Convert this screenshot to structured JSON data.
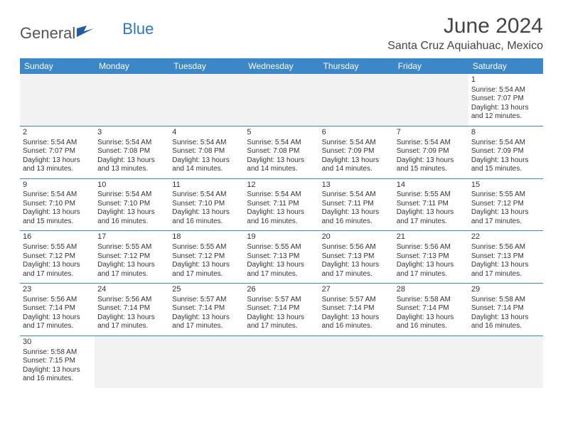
{
  "logo": {
    "text1": "General",
    "text2": "Blue"
  },
  "title": "June 2024",
  "location": "Santa Cruz Aquiahuac, Mexico",
  "colors": {
    "header_bg": "#3b87c8",
    "header_text": "#ffffff",
    "cell_border": "#3b87c8",
    "blank_bg": "#f2f2f2",
    "text": "#333333",
    "logo_blue": "#2a78bd"
  },
  "daysOfWeek": [
    "Sunday",
    "Monday",
    "Tuesday",
    "Wednesday",
    "Thursday",
    "Friday",
    "Saturday"
  ],
  "weeks": [
    [
      null,
      null,
      null,
      null,
      null,
      null,
      {
        "n": "1",
        "sr": "Sunrise: 5:54 AM",
        "ss": "Sunset: 7:07 PM",
        "dl1": "Daylight: 13 hours",
        "dl2": "and 12 minutes."
      }
    ],
    [
      {
        "n": "2",
        "sr": "Sunrise: 5:54 AM",
        "ss": "Sunset: 7:07 PM",
        "dl1": "Daylight: 13 hours",
        "dl2": "and 13 minutes."
      },
      {
        "n": "3",
        "sr": "Sunrise: 5:54 AM",
        "ss": "Sunset: 7:08 PM",
        "dl1": "Daylight: 13 hours",
        "dl2": "and 13 minutes."
      },
      {
        "n": "4",
        "sr": "Sunrise: 5:54 AM",
        "ss": "Sunset: 7:08 PM",
        "dl1": "Daylight: 13 hours",
        "dl2": "and 14 minutes."
      },
      {
        "n": "5",
        "sr": "Sunrise: 5:54 AM",
        "ss": "Sunset: 7:08 PM",
        "dl1": "Daylight: 13 hours",
        "dl2": "and 14 minutes."
      },
      {
        "n": "6",
        "sr": "Sunrise: 5:54 AM",
        "ss": "Sunset: 7:09 PM",
        "dl1": "Daylight: 13 hours",
        "dl2": "and 14 minutes."
      },
      {
        "n": "7",
        "sr": "Sunrise: 5:54 AM",
        "ss": "Sunset: 7:09 PM",
        "dl1": "Daylight: 13 hours",
        "dl2": "and 15 minutes."
      },
      {
        "n": "8",
        "sr": "Sunrise: 5:54 AM",
        "ss": "Sunset: 7:09 PM",
        "dl1": "Daylight: 13 hours",
        "dl2": "and 15 minutes."
      }
    ],
    [
      {
        "n": "9",
        "sr": "Sunrise: 5:54 AM",
        "ss": "Sunset: 7:10 PM",
        "dl1": "Daylight: 13 hours",
        "dl2": "and 15 minutes."
      },
      {
        "n": "10",
        "sr": "Sunrise: 5:54 AM",
        "ss": "Sunset: 7:10 PM",
        "dl1": "Daylight: 13 hours",
        "dl2": "and 16 minutes."
      },
      {
        "n": "11",
        "sr": "Sunrise: 5:54 AM",
        "ss": "Sunset: 7:10 PM",
        "dl1": "Daylight: 13 hours",
        "dl2": "and 16 minutes."
      },
      {
        "n": "12",
        "sr": "Sunrise: 5:54 AM",
        "ss": "Sunset: 7:11 PM",
        "dl1": "Daylight: 13 hours",
        "dl2": "and 16 minutes."
      },
      {
        "n": "13",
        "sr": "Sunrise: 5:54 AM",
        "ss": "Sunset: 7:11 PM",
        "dl1": "Daylight: 13 hours",
        "dl2": "and 16 minutes."
      },
      {
        "n": "14",
        "sr": "Sunrise: 5:55 AM",
        "ss": "Sunset: 7:11 PM",
        "dl1": "Daylight: 13 hours",
        "dl2": "and 17 minutes."
      },
      {
        "n": "15",
        "sr": "Sunrise: 5:55 AM",
        "ss": "Sunset: 7:12 PM",
        "dl1": "Daylight: 13 hours",
        "dl2": "and 17 minutes."
      }
    ],
    [
      {
        "n": "16",
        "sr": "Sunrise: 5:55 AM",
        "ss": "Sunset: 7:12 PM",
        "dl1": "Daylight: 13 hours",
        "dl2": "and 17 minutes."
      },
      {
        "n": "17",
        "sr": "Sunrise: 5:55 AM",
        "ss": "Sunset: 7:12 PM",
        "dl1": "Daylight: 13 hours",
        "dl2": "and 17 minutes."
      },
      {
        "n": "18",
        "sr": "Sunrise: 5:55 AM",
        "ss": "Sunset: 7:12 PM",
        "dl1": "Daylight: 13 hours",
        "dl2": "and 17 minutes."
      },
      {
        "n": "19",
        "sr": "Sunrise: 5:55 AM",
        "ss": "Sunset: 7:13 PM",
        "dl1": "Daylight: 13 hours",
        "dl2": "and 17 minutes."
      },
      {
        "n": "20",
        "sr": "Sunrise: 5:56 AM",
        "ss": "Sunset: 7:13 PM",
        "dl1": "Daylight: 13 hours",
        "dl2": "and 17 minutes."
      },
      {
        "n": "21",
        "sr": "Sunrise: 5:56 AM",
        "ss": "Sunset: 7:13 PM",
        "dl1": "Daylight: 13 hours",
        "dl2": "and 17 minutes."
      },
      {
        "n": "22",
        "sr": "Sunrise: 5:56 AM",
        "ss": "Sunset: 7:13 PM",
        "dl1": "Daylight: 13 hours",
        "dl2": "and 17 minutes."
      }
    ],
    [
      {
        "n": "23",
        "sr": "Sunrise: 5:56 AM",
        "ss": "Sunset: 7:14 PM",
        "dl1": "Daylight: 13 hours",
        "dl2": "and 17 minutes."
      },
      {
        "n": "24",
        "sr": "Sunrise: 5:56 AM",
        "ss": "Sunset: 7:14 PM",
        "dl1": "Daylight: 13 hours",
        "dl2": "and 17 minutes."
      },
      {
        "n": "25",
        "sr": "Sunrise: 5:57 AM",
        "ss": "Sunset: 7:14 PM",
        "dl1": "Daylight: 13 hours",
        "dl2": "and 17 minutes."
      },
      {
        "n": "26",
        "sr": "Sunrise: 5:57 AM",
        "ss": "Sunset: 7:14 PM",
        "dl1": "Daylight: 13 hours",
        "dl2": "and 17 minutes."
      },
      {
        "n": "27",
        "sr": "Sunrise: 5:57 AM",
        "ss": "Sunset: 7:14 PM",
        "dl1": "Daylight: 13 hours",
        "dl2": "and 16 minutes."
      },
      {
        "n": "28",
        "sr": "Sunrise: 5:58 AM",
        "ss": "Sunset: 7:14 PM",
        "dl1": "Daylight: 13 hours",
        "dl2": "and 16 minutes."
      },
      {
        "n": "29",
        "sr": "Sunrise: 5:58 AM",
        "ss": "Sunset: 7:14 PM",
        "dl1": "Daylight: 13 hours",
        "dl2": "and 16 minutes."
      }
    ],
    [
      {
        "n": "30",
        "sr": "Sunrise: 5:58 AM",
        "ss": "Sunset: 7:15 PM",
        "dl1": "Daylight: 13 hours",
        "dl2": "and 16 minutes."
      },
      null,
      null,
      null,
      null,
      null,
      null
    ]
  ]
}
